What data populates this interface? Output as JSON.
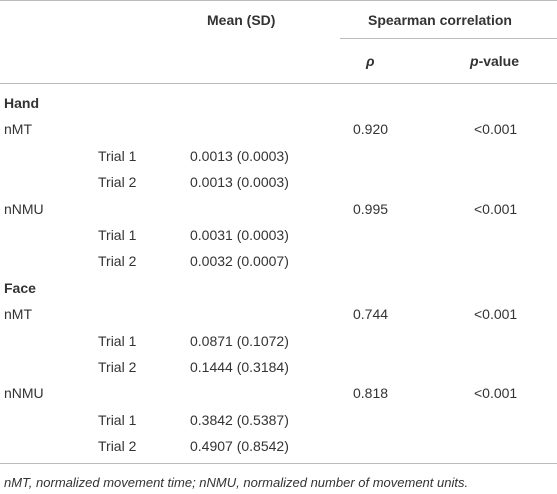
{
  "header": {
    "mean": "Mean (SD)",
    "spearman": "Spearman correlation",
    "rho": "ρ",
    "p_value": {
      "italic": "p",
      "rest": "-value"
    }
  },
  "sections": [
    {
      "title": "Hand",
      "measures": [
        {
          "name": "nMT",
          "rho": "0.920",
          "p": "<0.001",
          "trials": [
            {
              "name": "Trial 1",
              "mean": "0.0013 (0.0003)"
            },
            {
              "name": "Trial 2",
              "mean": "0.0013 (0.0003)"
            }
          ]
        },
        {
          "name": "nNMU",
          "rho": "0.995",
          "p": "<0.001",
          "trials": [
            {
              "name": "Trial 1",
              "mean": "0.0031 (0.0003)"
            },
            {
              "name": "Trial 2",
              "mean": "0.0032 (0.0007)"
            }
          ]
        }
      ]
    },
    {
      "title": "Face",
      "measures": [
        {
          "name": "nMT",
          "rho": "0.744",
          "p": "<0.001",
          "trials": [
            {
              "name": "Trial 1",
              "mean": "0.0871 (0.1072)"
            },
            {
              "name": "Trial 2",
              "mean": "0.1444 (0.3184)"
            }
          ]
        },
        {
          "name": "nNMU",
          "rho": "0.818",
          "p": "<0.001",
          "trials": [
            {
              "name": "Trial 1",
              "mean": "0.3842 (0.5387)"
            },
            {
              "name": "Trial 2",
              "mean": "0.4907 (0.8542)"
            }
          ]
        }
      ]
    }
  ],
  "footnote": "nMT, normalized movement time; nNMU, normalized number of movement units."
}
